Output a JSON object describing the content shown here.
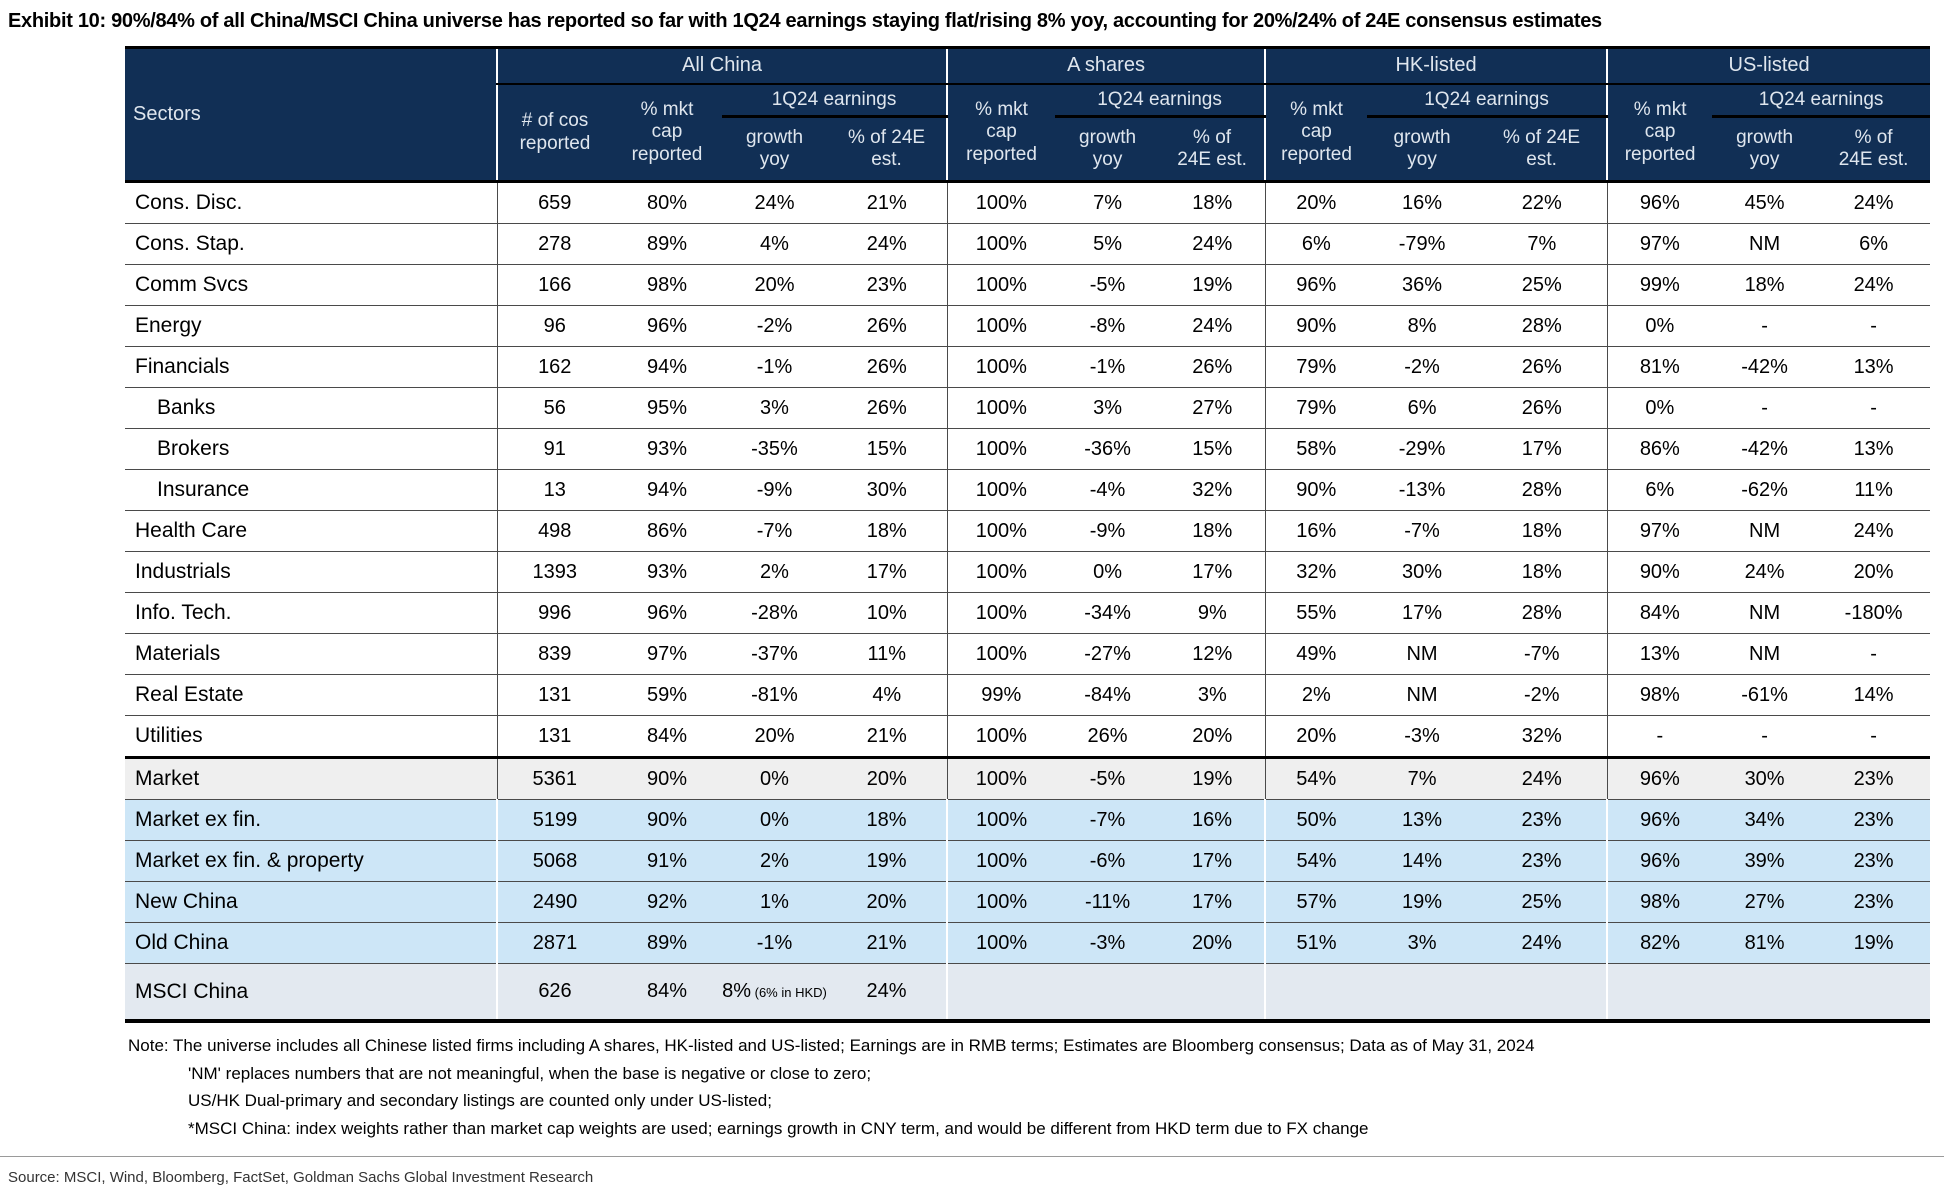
{
  "title": "Exhibit 10: 90%/84% of all China/MSCI China universe has reported so far with 1Q24 earnings staying flat/rising 8% yoy, accounting for 20%/24% of 24E consensus estimates",
  "colors": {
    "header_bg": "#112f55",
    "blue_row": "#cde6f7",
    "gray_row": "#efefef",
    "msci_row": "#e3e9f0"
  },
  "table": {
    "sectors_header": "Sectors",
    "groups": [
      {
        "label": "All China",
        "cos": "# of cos\nreported",
        "mkt": "% mkt\ncap\nreported",
        "earnings": "1Q24 earnings",
        "growth": "growth\nyoy",
        "pct24": "% of 24E\nest."
      },
      {
        "label": "A shares",
        "mkt": "% mkt\ncap\nreported",
        "earnings": "1Q24 earnings",
        "growth": "growth\nyoy",
        "pct24": "% of\n24E est."
      },
      {
        "label": "HK-listed",
        "mkt": "% mkt\ncap\nreported",
        "earnings": "1Q24 earnings",
        "growth": "growth\nyoy",
        "pct24": "% of 24E\nest."
      },
      {
        "label": "US-listed",
        "mkt": "% mkt\ncap\nreported",
        "earnings": "1Q24 earnings",
        "growth": "growth\nyoy",
        "pct24": "% of\n24E est."
      }
    ],
    "rows": [
      {
        "sector": "Cons. Disc.",
        "style": "w",
        "values": [
          "659",
          "80%",
          "24%",
          "21%",
          "100%",
          "7%",
          "18%",
          "20%",
          "16%",
          "22%",
          "96%",
          "45%",
          "24%"
        ]
      },
      {
        "sector": "Cons. Stap.",
        "style": "w",
        "values": [
          "278",
          "89%",
          "4%",
          "24%",
          "100%",
          "5%",
          "24%",
          "6%",
          "-79%",
          "7%",
          "97%",
          "NM",
          "6%"
        ]
      },
      {
        "sector": "Comm Svcs",
        "style": "w",
        "values": [
          "166",
          "98%",
          "20%",
          "23%",
          "100%",
          "-5%",
          "19%",
          "96%",
          "36%",
          "25%",
          "99%",
          "18%",
          "24%"
        ]
      },
      {
        "sector": "Energy",
        "style": "w",
        "values": [
          "96",
          "96%",
          "-2%",
          "26%",
          "100%",
          "-8%",
          "24%",
          "90%",
          "8%",
          "28%",
          "0%",
          "-",
          "-"
        ]
      },
      {
        "sector": "Financials",
        "style": "w",
        "values": [
          "162",
          "94%",
          "-1%",
          "26%",
          "100%",
          "-1%",
          "26%",
          "79%",
          "-2%",
          "26%",
          "81%",
          "-42%",
          "13%"
        ]
      },
      {
        "sector": "Banks",
        "style": "w",
        "indent": true,
        "values": [
          "56",
          "95%",
          "3%",
          "26%",
          "100%",
          "3%",
          "27%",
          "79%",
          "6%",
          "26%",
          "0%",
          "-",
          "-"
        ]
      },
      {
        "sector": "Brokers",
        "style": "w",
        "indent": true,
        "values": [
          "91",
          "93%",
          "-35%",
          "15%",
          "100%",
          "-36%",
          "15%",
          "58%",
          "-29%",
          "17%",
          "86%",
          "-42%",
          "13%"
        ]
      },
      {
        "sector": "Insurance",
        "style": "w",
        "indent": true,
        "values": [
          "13",
          "94%",
          "-9%",
          "30%",
          "100%",
          "-4%",
          "32%",
          "90%",
          "-13%",
          "28%",
          "6%",
          "-62%",
          "11%"
        ]
      },
      {
        "sector": "Health Care",
        "style": "w",
        "values": [
          "498",
          "86%",
          "-7%",
          "18%",
          "100%",
          "-9%",
          "18%",
          "16%",
          "-7%",
          "18%",
          "97%",
          "NM",
          "24%"
        ]
      },
      {
        "sector": "Industrials",
        "style": "w",
        "values": [
          "1393",
          "93%",
          "2%",
          "17%",
          "100%",
          "0%",
          "17%",
          "32%",
          "30%",
          "18%",
          "90%",
          "24%",
          "20%"
        ]
      },
      {
        "sector": "Info. Tech.",
        "style": "w",
        "values": [
          "996",
          "96%",
          "-28%",
          "10%",
          "100%",
          "-34%",
          "9%",
          "55%",
          "17%",
          "28%",
          "84%",
          "NM",
          "-180%"
        ]
      },
      {
        "sector": "Materials",
        "style": "w",
        "values": [
          "839",
          "97%",
          "-37%",
          "11%",
          "100%",
          "-27%",
          "12%",
          "49%",
          "NM",
          "-7%",
          "13%",
          "NM",
          "-"
        ]
      },
      {
        "sector": "Real Estate",
        "style": "w",
        "values": [
          "131",
          "59%",
          "-81%",
          "4%",
          "99%",
          "-84%",
          "3%",
          "2%",
          "NM",
          "-2%",
          "98%",
          "-61%",
          "14%"
        ]
      },
      {
        "sector": "Utilities",
        "style": "w",
        "values": [
          "131",
          "84%",
          "20%",
          "21%",
          "100%",
          "26%",
          "20%",
          "20%",
          "-3%",
          "32%",
          "-",
          "-",
          "-"
        ]
      },
      {
        "sector": "Market",
        "style": "gray",
        "values": [
          "5361",
          "90%",
          "0%",
          "20%",
          "100%",
          "-5%",
          "19%",
          "54%",
          "7%",
          "24%",
          "96%",
          "30%",
          "23%"
        ]
      },
      {
        "sector": "Market ex fin.",
        "style": "blue",
        "values": [
          "5199",
          "90%",
          "0%",
          "18%",
          "100%",
          "-7%",
          "16%",
          "50%",
          "13%",
          "23%",
          "96%",
          "34%",
          "23%"
        ]
      },
      {
        "sector": "Market ex fin. & property",
        "style": "blue",
        "values": [
          "5068",
          "91%",
          "2%",
          "19%",
          "100%",
          "-6%",
          "17%",
          "54%",
          "14%",
          "23%",
          "96%",
          "39%",
          "23%"
        ]
      },
      {
        "sector": "New China",
        "style": "blue",
        "values": [
          "2490",
          "92%",
          "1%",
          "20%",
          "100%",
          "-11%",
          "17%",
          "57%",
          "19%",
          "25%",
          "98%",
          "27%",
          "23%"
        ]
      },
      {
        "sector": "Old China",
        "style": "blue",
        "values": [
          "2871",
          "89%",
          "-1%",
          "21%",
          "100%",
          "-3%",
          "20%",
          "51%",
          "3%",
          "24%",
          "82%",
          "81%",
          "19%"
        ]
      },
      {
        "sector": "MSCI China",
        "style": "msci",
        "growth_note": "(6% in HKD)",
        "values": [
          "626",
          "84%",
          "8%",
          "24%",
          "",
          "",
          "",
          "",
          "",
          "",
          "",
          "",
          ""
        ]
      }
    ]
  },
  "notes": [
    "Note: The universe includes all Chinese listed firms including A shares, HK-listed and US-listed; Earnings are in RMB terms; Estimates are Bloomberg consensus; Data as of May 31, 2024",
    "'NM' replaces numbers that are not meaningful, when the base is negative or close to zero;",
    "US/HK Dual-primary and secondary listings are counted only under US-listed;",
    "*MSCI China: index weights rather than market cap weights are used; earnings growth in CNY term, and would be different from HKD term due to FX change"
  ],
  "source": "Source: MSCI, Wind, Bloomberg, FactSet, Goldman Sachs Global Investment Research"
}
